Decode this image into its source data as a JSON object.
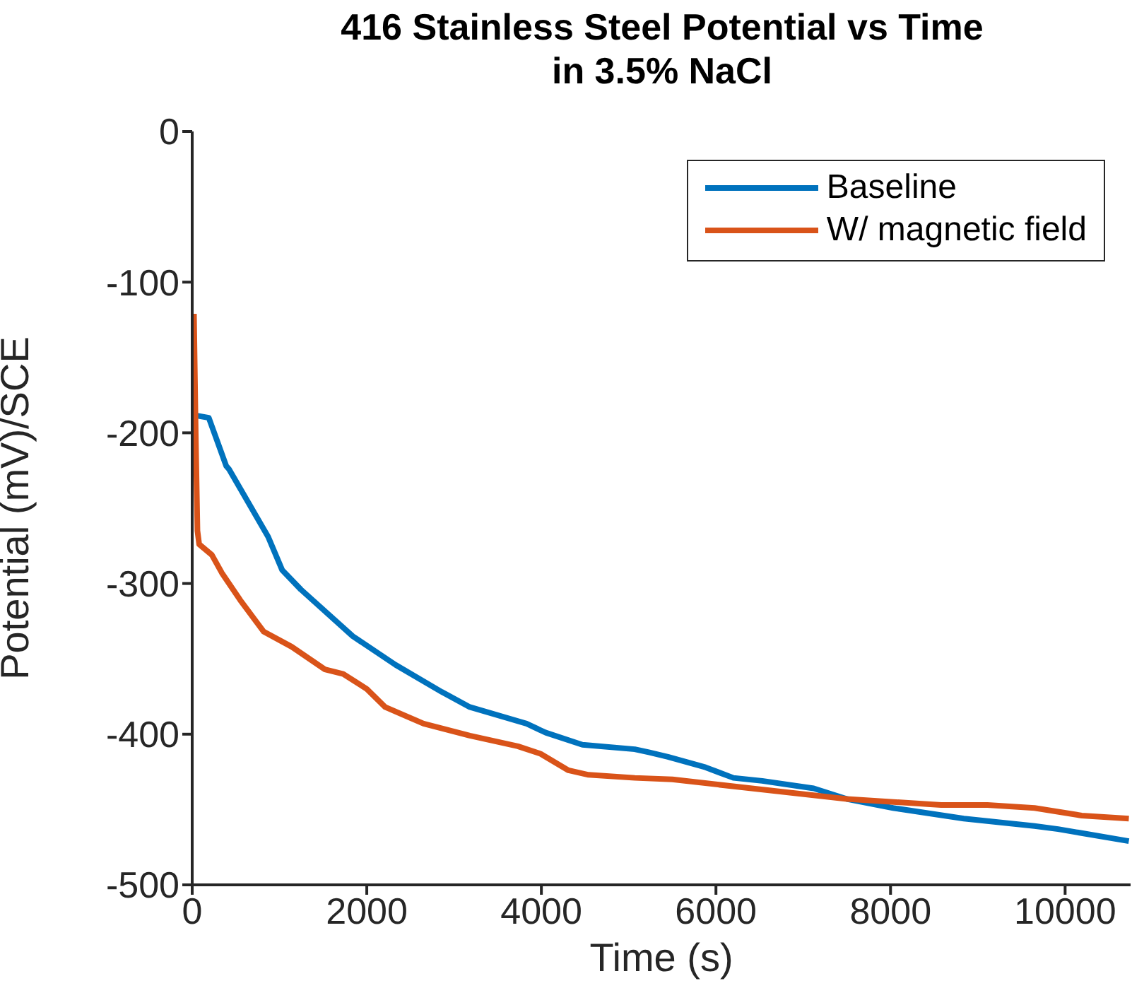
{
  "chart_data": {
    "type": "line",
    "title": "416 Stainless Steel Potential vs Time\nin 3.5% NaCl",
    "xlabel": "Time (s)",
    "ylabel": "Potential (mV)/SCE",
    "xlim": [
      0,
      10750
    ],
    "xticks": [
      0,
      2000,
      4000,
      6000,
      8000,
      10000
    ],
    "ylim": [
      -500,
      0
    ],
    "yticks": [
      -500,
      -400,
      -300,
      -200,
      -100,
      0
    ],
    "grid": false,
    "legend": "top right",
    "marker": "none",
    "line_style": "solid",
    "series": [
      {
        "name": "Baseline",
        "color": "#0072bd",
        "x": [
          0,
          190,
          390,
          420,
          870,
          1030,
          1245,
          1840,
          2330,
          2860,
          3180,
          3830,
          4050,
          4470,
          5070,
          5230,
          5450,
          5880,
          6200,
          6530,
          7120,
          7500,
          8030,
          8840,
          9650,
          9920,
          10730
        ],
        "values": [
          -188,
          -190,
          -222,
          -224,
          -269,
          -291,
          -304,
          -335,
          -354,
          -372,
          -382,
          -393,
          -399,
          -407,
          -410,
          -412,
          -415,
          -422,
          -429,
          -431,
          -436,
          -443,
          -449,
          -456,
          -461,
          -463,
          -471
        ]
      },
      {
        "name": "W/ magnetic field",
        "color": "#d95319",
        "x": [
          20,
          40,
          60,
          80,
          225,
          340,
          550,
          820,
          1140,
          1520,
          1730,
          2000,
          2210,
          2650,
          3180,
          3730,
          3990,
          4310,
          4540,
          5070,
          5500,
          6410,
          7500,
          8580,
          9110,
          9650,
          10190,
          10730
        ],
        "values": [
          -121,
          -200,
          -265,
          -274,
          -281,
          -293,
          -311,
          -332,
          -342,
          -357,
          -360,
          -370,
          -382,
          -393,
          -401,
          -408,
          -413,
          -424,
          -427,
          -429,
          -430,
          -436,
          -443,
          -447,
          -447,
          -449,
          -454,
          -456
        ]
      }
    ]
  }
}
